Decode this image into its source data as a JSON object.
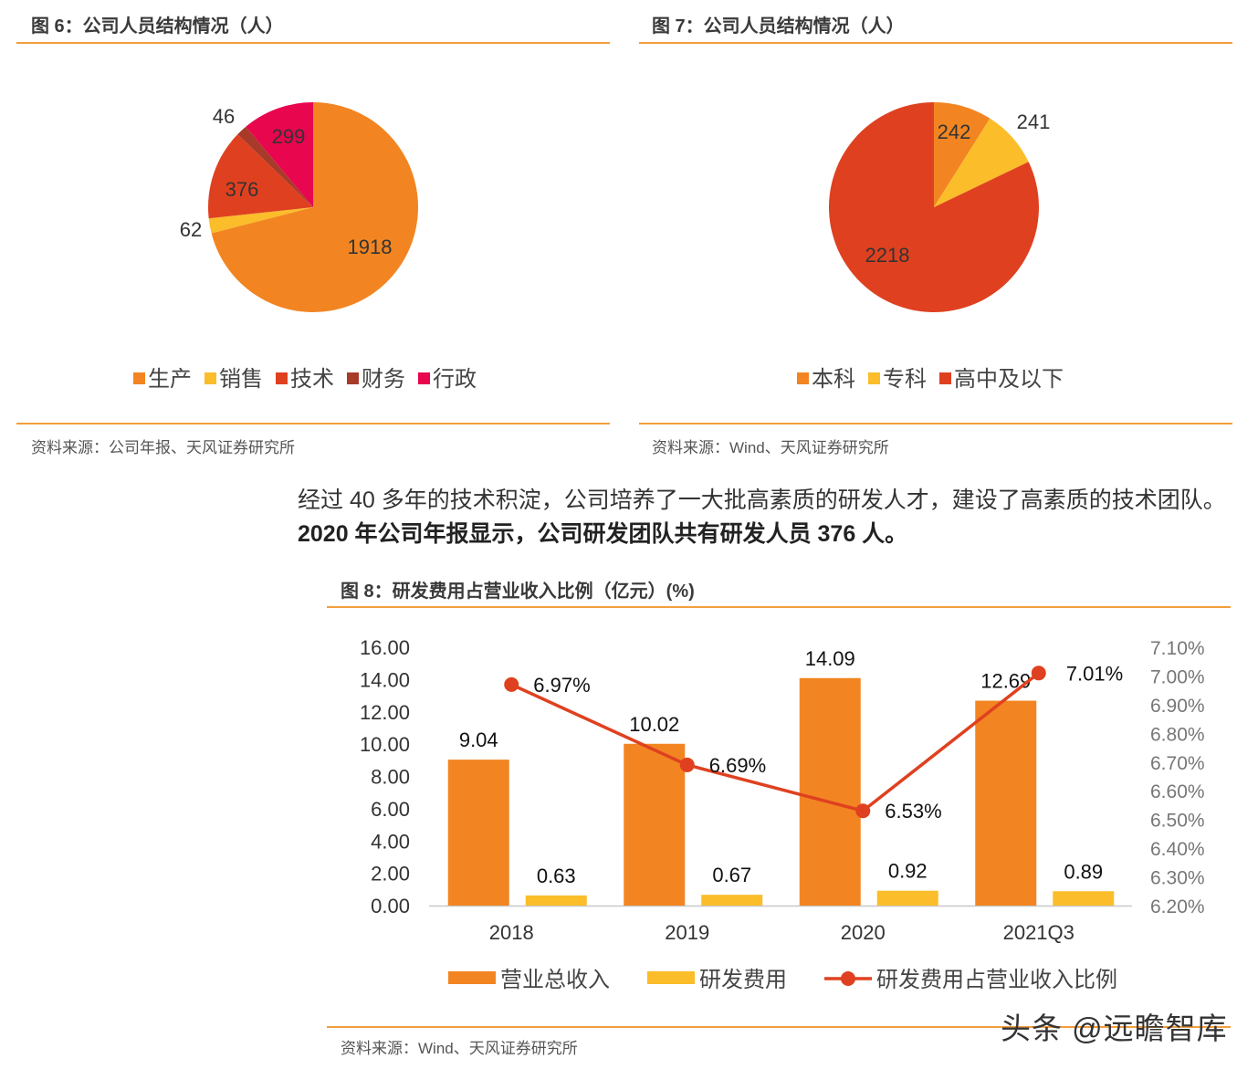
{
  "figures": {
    "fig6": {
      "title": "图 6：公司人员结构情况（人）",
      "source": "资料来源：公司年报、天风证券研究所"
    },
    "fig7": {
      "title": "图 7：公司人员结构情况（人）",
      "source": "资料来源：Wind、天风证券研究所"
    },
    "fig8": {
      "title": "图 8：研发费用占营业收入比例（亿元）(%)",
      "source": "资料来源：Wind、天风证券研究所"
    }
  },
  "paragraph": {
    "normal": "经过 40 多年的技术积淀，公司培养了一大批高素质的研发人才，建设了高素质的技术团队。",
    "bold": "2020 年公司年报显示，公司研发团队共有研发人员 376 人。"
  },
  "watermark": "头条 @远瞻智库",
  "colors": {
    "orange": "#f28522",
    "yellow": "#fbbd2a",
    "red": "#df4120",
    "darkred": "#a83a2a",
    "crimson": "#e8064e",
    "rule": "#f29e3d"
  },
  "chart_data": [
    {
      "type": "pie",
      "labels": [
        "生产",
        "销售",
        "技术",
        "财务",
        "行政"
      ],
      "values": [
        1918,
        62,
        376,
        46,
        299
      ],
      "colors": [
        "#f28522",
        "#fbbd2a",
        "#df4120",
        "#a83a2a",
        "#e8064e"
      ],
      "legend": "bottom"
    },
    {
      "type": "pie",
      "labels": [
        "本科",
        "专科",
        "高中及以下"
      ],
      "values": [
        242,
        241,
        2218
      ],
      "colors": [
        "#f28522",
        "#fbbd2a",
        "#df4120"
      ],
      "legend": "bottom"
    },
    {
      "type": "bar",
      "categories": [
        "2018",
        "2019",
        "2020",
        "2021Q3"
      ],
      "series": [
        {
          "name": "营业总收入",
          "type": "bar",
          "axis": "left",
          "color": "#f28522",
          "values": [
            9.04,
            10.02,
            14.09,
            12.69
          ],
          "labels": [
            "9.04",
            "10.02",
            "14.09",
            "12.69"
          ]
        },
        {
          "name": "研发费用",
          "type": "bar",
          "axis": "left",
          "color": "#fbbd2a",
          "values": [
            0.63,
            0.67,
            0.92,
            0.89
          ],
          "labels": [
            "0.63",
            "0.67",
            "0.92",
            "0.89"
          ]
        },
        {
          "name": "研发费用占营业收入比例",
          "type": "line",
          "axis": "right",
          "color": "#df4120",
          "values": [
            6.97,
            6.69,
            6.53,
            7.01
          ],
          "labels": [
            "6.97%",
            "6.69%",
            "6.53%",
            "7.01%"
          ]
        }
      ],
      "ylim": [
        0,
        16
      ],
      "yticks": [
        "0.00",
        "2.00",
        "4.00",
        "6.00",
        "8.00",
        "10.00",
        "12.00",
        "14.00",
        "16.00"
      ],
      "y2lim": [
        6.2,
        7.1
      ],
      "y2ticks": [
        "6.20%",
        "6.30%",
        "6.40%",
        "6.50%",
        "6.60%",
        "6.70%",
        "6.80%",
        "6.90%",
        "7.00%",
        "7.10%"
      ],
      "legend": "bottom"
    }
  ]
}
